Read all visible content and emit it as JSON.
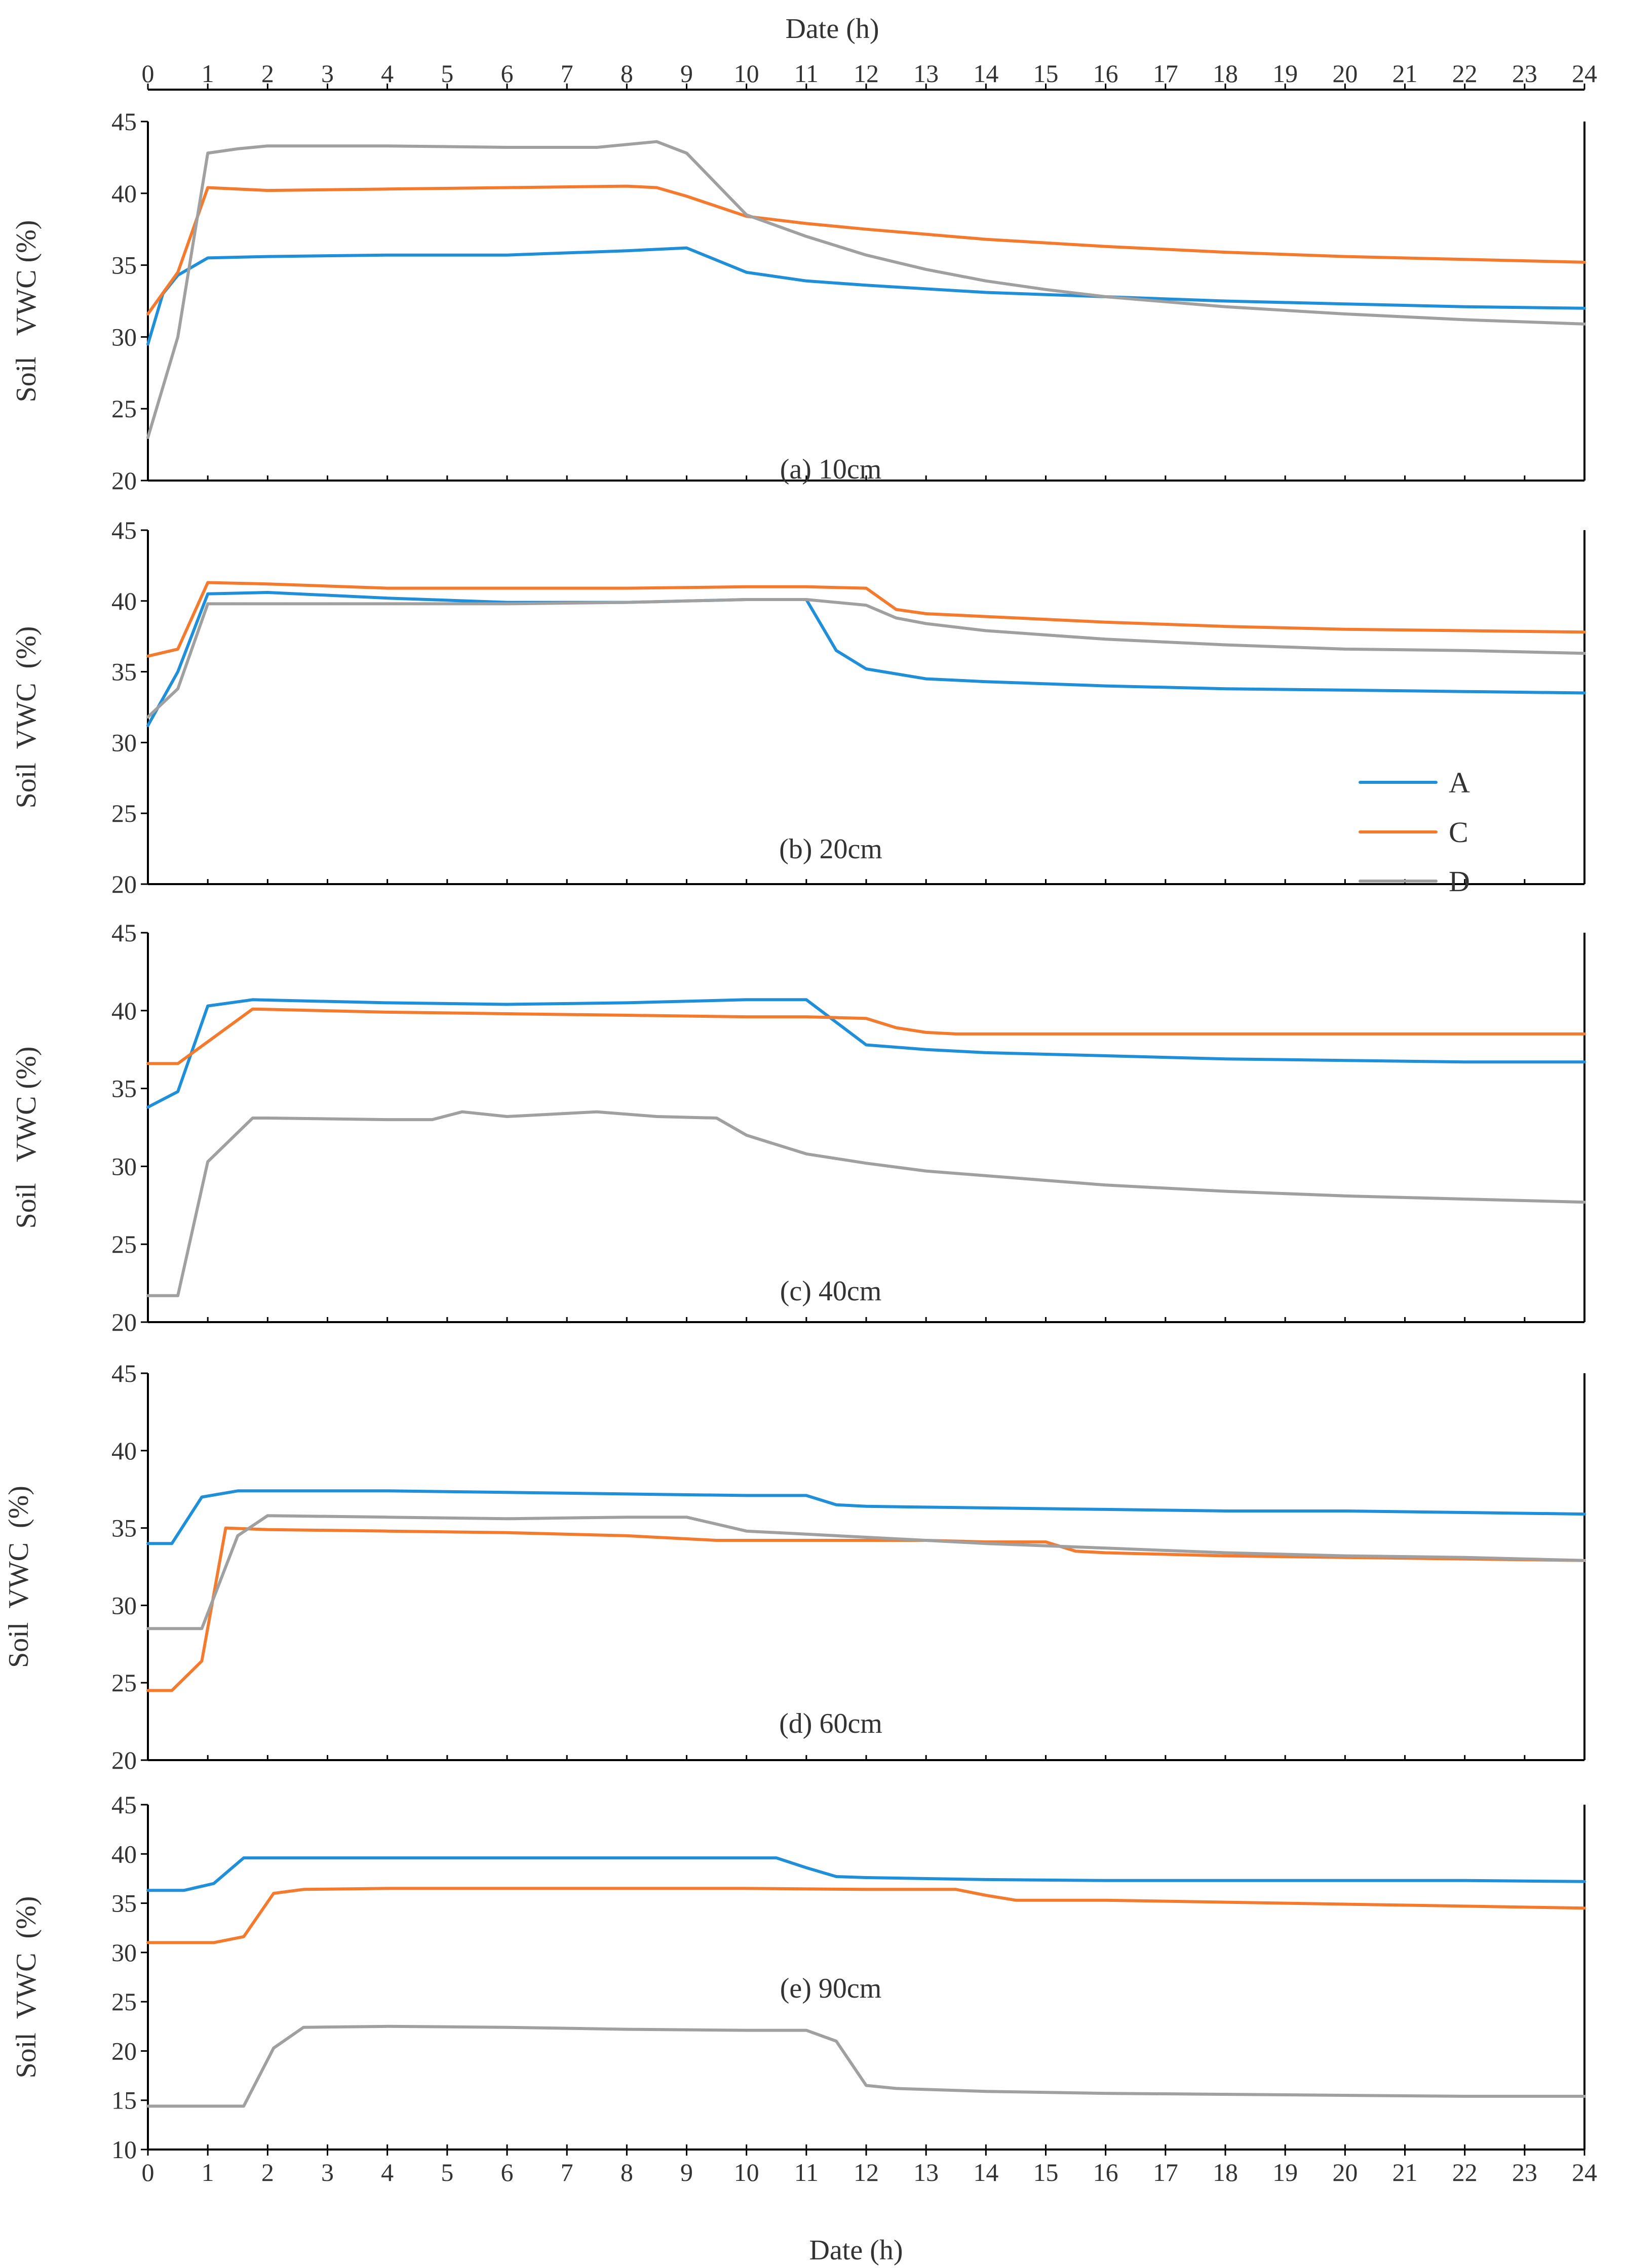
{
  "colors": {
    "A": "#1f8fd9",
    "C": "#f47a2e",
    "D": "#a0a0a0"
  },
  "top_axis_label": "Date (h)",
  "chart_data": [
    {
      "type": "line",
      "title": "(a) 10cm",
      "xlabel": "Date (h)",
      "ylabel": "Soil   VWC (%)",
      "xlim": [
        0,
        24
      ],
      "ylim": [
        20,
        45
      ],
      "xticks": [
        0,
        1,
        2,
        3,
        4,
        5,
        6,
        7,
        8,
        9,
        10,
        11,
        12,
        13,
        14,
        15,
        16,
        17,
        18,
        19,
        20,
        21,
        22,
        23,
        24
      ],
      "yticks": [
        20,
        25,
        30,
        35,
        40,
        45
      ],
      "series": [
        {
          "name": "A",
          "x": [
            0,
            0.25,
            0.5,
            1,
            2,
            4,
            6,
            8,
            9,
            10,
            11,
            12,
            14,
            16,
            18,
            20,
            22,
            24
          ],
          "y": [
            29.5,
            33,
            34.3,
            35.5,
            35.6,
            35.7,
            35.7,
            36,
            36.2,
            34.5,
            33.9,
            33.6,
            33.1,
            32.8,
            32.5,
            32.3,
            32.1,
            32.0
          ]
        },
        {
          "name": "C",
          "x": [
            0,
            0.5,
            1,
            2,
            4,
            6,
            8,
            8.5,
            9,
            10,
            11,
            12,
            14,
            16,
            18,
            20,
            22,
            24
          ],
          "y": [
            31.6,
            34.5,
            40.4,
            40.2,
            40.3,
            40.4,
            40.5,
            40.4,
            39.8,
            38.4,
            37.9,
            37.5,
            36.8,
            36.3,
            35.9,
            35.6,
            35.4,
            35.2
          ]
        },
        {
          "name": "D",
          "x": [
            0,
            0.5,
            1,
            1.5,
            2,
            4,
            6,
            7.5,
            8.5,
            9,
            10,
            11,
            12,
            13,
            14,
            15,
            16,
            18,
            20,
            22,
            24
          ],
          "y": [
            23,
            30,
            42.8,
            43.1,
            43.3,
            43.3,
            43.2,
            43.2,
            43.6,
            42.8,
            38.5,
            37.0,
            35.7,
            34.7,
            33.9,
            33.3,
            32.8,
            32.1,
            31.6,
            31.2,
            30.9
          ]
        }
      ]
    },
    {
      "type": "line",
      "title": "(b) 20cm",
      "xlabel": "Date (h)",
      "ylabel": "Soil  VWC  (%)",
      "xlim": [
        0,
        24
      ],
      "ylim": [
        20,
        45
      ],
      "xticks": [
        0,
        1,
        2,
        3,
        4,
        5,
        6,
        7,
        8,
        9,
        10,
        11,
        12,
        13,
        14,
        15,
        16,
        17,
        18,
        19,
        20,
        21,
        22,
        23,
        24
      ],
      "yticks": [
        20,
        25,
        30,
        35,
        40,
        45
      ],
      "series": [
        {
          "name": "A",
          "x": [
            0,
            0.5,
            1,
            2,
            4,
            6,
            8,
            9,
            10,
            11,
            11.5,
            12,
            13,
            14,
            16,
            18,
            20,
            22,
            24
          ],
          "y": [
            31.2,
            35,
            40.5,
            40.6,
            40.2,
            39.9,
            39.9,
            40,
            40.1,
            40.1,
            36.5,
            35.2,
            34.5,
            34.3,
            34.0,
            33.8,
            33.7,
            33.6,
            33.5
          ]
        },
        {
          "name": "C",
          "x": [
            0,
            0.5,
            1,
            2,
            4,
            6,
            8,
            10,
            11,
            12,
            12.5,
            13,
            14,
            16,
            18,
            20,
            22,
            24
          ],
          "y": [
            36.1,
            36.6,
            41.3,
            41.2,
            40.9,
            40.9,
            40.9,
            41,
            41,
            40.9,
            39.4,
            39.1,
            38.9,
            38.5,
            38.2,
            38.0,
            37.9,
            37.8
          ]
        },
        {
          "name": "D",
          "x": [
            0,
            0.5,
            1,
            2,
            4,
            6,
            8,
            10,
            11,
            12,
            12.5,
            13,
            14,
            16,
            18,
            20,
            22,
            24
          ],
          "y": [
            31.8,
            33.8,
            39.8,
            39.8,
            39.8,
            39.8,
            39.9,
            40.1,
            40.1,
            39.7,
            38.8,
            38.4,
            37.9,
            37.3,
            36.9,
            36.6,
            36.5,
            36.3
          ]
        }
      ]
    },
    {
      "type": "line",
      "title": "(c) 40cm",
      "xlabel": "Date (h)",
      "ylabel": "Soil   VWC (%)",
      "xlim": [
        0,
        24
      ],
      "ylim": [
        20,
        45
      ],
      "xticks": [
        0,
        1,
        2,
        3,
        4,
        5,
        6,
        7,
        8,
        9,
        10,
        11,
        12,
        13,
        14,
        15,
        16,
        17,
        18,
        19,
        20,
        21,
        22,
        23,
        24
      ],
      "yticks": [
        20,
        25,
        30,
        35,
        40,
        45
      ],
      "series": [
        {
          "name": "A",
          "x": [
            0,
            0.5,
            1,
            1.75,
            4,
            6,
            8,
            10,
            11,
            12,
            13,
            14,
            16,
            18,
            20,
            22,
            24
          ],
          "y": [
            33.8,
            34.8,
            40.3,
            40.7,
            40.5,
            40.4,
            40.5,
            40.7,
            40.7,
            37.8,
            37.5,
            37.3,
            37.1,
            36.9,
            36.8,
            36.7,
            36.7
          ]
        },
        {
          "name": "C",
          "x": [
            0,
            0.5,
            1,
            1.75,
            4,
            6,
            8,
            10,
            11,
            12,
            12.5,
            13,
            13.5,
            16,
            20,
            24
          ],
          "y": [
            36.6,
            36.6,
            38,
            40.1,
            39.9,
            39.8,
            39.7,
            39.6,
            39.6,
            39.5,
            38.9,
            38.6,
            38.5,
            38.5,
            38.5,
            38.5
          ]
        },
        {
          "name": "D",
          "x": [
            0,
            0.5,
            1,
            1.75,
            2,
            4,
            4.75,
            5.25,
            6,
            7.5,
            8.5,
            9.5,
            10,
            11,
            12,
            13,
            14,
            16,
            18,
            20,
            22,
            24
          ],
          "y": [
            21.7,
            21.7,
            30.3,
            33.1,
            33.1,
            33,
            33,
            33.5,
            33.2,
            33.5,
            33.2,
            33.1,
            32.0,
            30.8,
            30.2,
            29.7,
            29.4,
            28.8,
            28.4,
            28.1,
            27.9,
            27.7
          ]
        }
      ]
    },
    {
      "type": "line",
      "title": "(d) 60cm",
      "xlabel": "Date (h)",
      "ylabel": "Soil  VWC  (%)",
      "xlim": [
        0,
        24
      ],
      "ylim": [
        20,
        45
      ],
      "xticks": [
        0,
        1,
        2,
        3,
        4,
        5,
        6,
        7,
        8,
        9,
        10,
        11,
        12,
        13,
        14,
        15,
        16,
        17,
        18,
        19,
        20,
        21,
        22,
        23,
        24
      ],
      "yticks": [
        20,
        25,
        30,
        35,
        40,
        45
      ],
      "series": [
        {
          "name": "A",
          "x": [
            0,
            0.4,
            0.9,
            1.5,
            4,
            6,
            8,
            10,
            11,
            11.5,
            12,
            14,
            16,
            18,
            20,
            22,
            24
          ],
          "y": [
            34,
            34,
            37,
            37.4,
            37.4,
            37.3,
            37.2,
            37.1,
            37.1,
            36.5,
            36.4,
            36.3,
            36.2,
            36.1,
            36.1,
            36.0,
            35.9
          ]
        },
        {
          "name": "C",
          "x": [
            0,
            0.4,
            0.9,
            1.3,
            2,
            4,
            6,
            8,
            9.5,
            10,
            12,
            13,
            14,
            14.5,
            15,
            15.5,
            16,
            18,
            20,
            22,
            24
          ],
          "y": [
            24.5,
            24.5,
            26.4,
            35,
            34.9,
            34.8,
            34.7,
            34.5,
            34.2,
            34.2,
            34.2,
            34.2,
            34.1,
            34.1,
            34.1,
            33.5,
            33.4,
            33.2,
            33.1,
            33.0,
            32.9
          ]
        },
        {
          "name": "D",
          "x": [
            0,
            0.4,
            0.9,
            1.5,
            2,
            4,
            6,
            8,
            9,
            10,
            11,
            12,
            13,
            14,
            16,
            18,
            20,
            22,
            24
          ],
          "y": [
            28.5,
            28.5,
            28.5,
            34.5,
            35.8,
            35.7,
            35.6,
            35.7,
            35.7,
            34.8,
            34.6,
            34.4,
            34.2,
            34,
            33.7,
            33.4,
            33.2,
            33.1,
            32.9
          ]
        }
      ]
    },
    {
      "type": "line",
      "title": "(e) 90cm",
      "xlabel": "Date (h)",
      "ylabel": "Soil  VWC  (%)",
      "xlim": [
        0,
        24
      ],
      "ylim": [
        10,
        45
      ],
      "xticks": [
        0,
        1,
        2,
        3,
        4,
        5,
        6,
        7,
        8,
        9,
        10,
        11,
        12,
        13,
        14,
        15,
        16,
        17,
        18,
        19,
        20,
        21,
        22,
        23,
        24
      ],
      "yticks": [
        10,
        15,
        20,
        25,
        30,
        35,
        40,
        45
      ],
      "series": [
        {
          "name": "A",
          "x": [
            0,
            0.6,
            1.1,
            1.6,
            4,
            6,
            8,
            10,
            10.5,
            11,
            11.5,
            12,
            14,
            16,
            18,
            20,
            22,
            24
          ],
          "y": [
            36.3,
            36.3,
            37,
            39.6,
            39.6,
            39.6,
            39.6,
            39.6,
            39.6,
            38.6,
            37.7,
            37.6,
            37.4,
            37.3,
            37.3,
            37.3,
            37.3,
            37.2
          ]
        },
        {
          "name": "C",
          "x": [
            0,
            1.1,
            1.6,
            2.1,
            2.6,
            4,
            6,
            8,
            10,
            12,
            13,
            13.5,
            14,
            14.5,
            16,
            18,
            20,
            22,
            24
          ],
          "y": [
            31,
            31,
            31.6,
            36,
            36.4,
            36.5,
            36.5,
            36.5,
            36.5,
            36.4,
            36.4,
            36.4,
            35.8,
            35.3,
            35.3,
            35.1,
            34.9,
            34.7,
            34.5
          ]
        },
        {
          "name": "D",
          "x": [
            0,
            1.1,
            1.6,
            2.1,
            2.6,
            4,
            6,
            8,
            10,
            11,
            11.5,
            12,
            12.5,
            14,
            16,
            18,
            20,
            22,
            24
          ],
          "y": [
            14.4,
            14.4,
            14.4,
            20.3,
            22.4,
            22.5,
            22.4,
            22.2,
            22.1,
            22.1,
            21,
            16.5,
            16.2,
            15.9,
            15.7,
            15.6,
            15.5,
            15.4,
            15.4
          ]
        }
      ]
    }
  ],
  "legend": {
    "placement": "panel-b-lower-right",
    "entries": [
      {
        "name": "A",
        "label": "A"
      },
      {
        "name": "C",
        "label": "C"
      },
      {
        "name": "D",
        "label": "D"
      }
    ]
  }
}
